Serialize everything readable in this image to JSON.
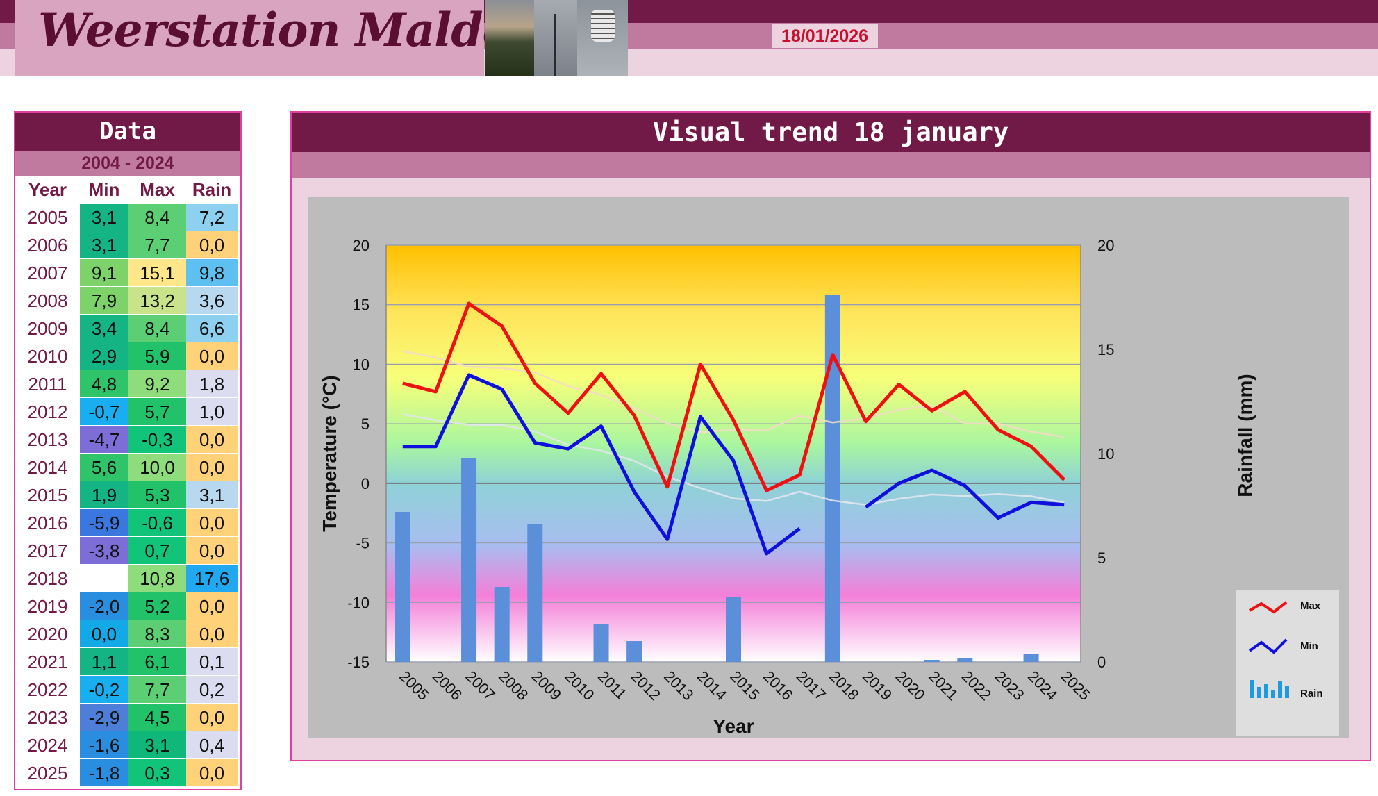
{
  "header": {
    "site_title": "Weerstation Malderen",
    "date": "18/01/2026"
  },
  "table": {
    "title": "Data",
    "period": "2004 - 2024",
    "columns": [
      "Year",
      "Min",
      "Max",
      "Rain"
    ],
    "rows": [
      {
        "year": "2005",
        "min": "3,1",
        "max": "8,4",
        "rain": "7,2"
      },
      {
        "year": "2006",
        "min": "3,1",
        "max": "7,7",
        "rain": "0,0"
      },
      {
        "year": "2007",
        "min": "9,1",
        "max": "15,1",
        "rain": "9,8"
      },
      {
        "year": "2008",
        "min": "7,9",
        "max": "13,2",
        "rain": "3,6"
      },
      {
        "year": "2009",
        "min": "3,4",
        "max": "8,4",
        "rain": "6,6"
      },
      {
        "year": "2010",
        "min": "2,9",
        "max": "5,9",
        "rain": "0,0"
      },
      {
        "year": "2011",
        "min": "4,8",
        "max": "9,2",
        "rain": "1,8"
      },
      {
        "year": "2012",
        "min": "-0,7",
        "max": "5,7",
        "rain": "1,0"
      },
      {
        "year": "2013",
        "min": "-4,7",
        "max": "-0,3",
        "rain": "0,0"
      },
      {
        "year": "2014",
        "min": "5,6",
        "max": "10,0",
        "rain": "0,0"
      },
      {
        "year": "2015",
        "min": "1,9",
        "max": "5,3",
        "rain": "3,1"
      },
      {
        "year": "2016",
        "min": "-5,9",
        "max": "-0,6",
        "rain": "0,0"
      },
      {
        "year": "2017",
        "min": "-3,8",
        "max": "0,7",
        "rain": "0,0"
      },
      {
        "year": "2018",
        "min": "",
        "max": "10,8",
        "rain": "17,6"
      },
      {
        "year": "2019",
        "min": "-2,0",
        "max": "5,2",
        "rain": "0,0"
      },
      {
        "year": "2020",
        "min": "0,0",
        "max": "8,3",
        "rain": "0,0"
      },
      {
        "year": "2021",
        "min": "1,1",
        "max": "6,1",
        "rain": "0,1"
      },
      {
        "year": "2022",
        "min": "-0,2",
        "max": "7,7",
        "rain": "0,2"
      },
      {
        "year": "2023",
        "min": "-2,9",
        "max": "4,5",
        "rain": "0,0"
      },
      {
        "year": "2024",
        "min": "-1,6",
        "max": "3,1",
        "rain": "0,4"
      },
      {
        "year": "2025",
        "min": "-1,8",
        "max": "0,3",
        "rain": "0,0"
      }
    ]
  },
  "chart_panel": {
    "title": "Visual trend 18 january"
  },
  "colors": {
    "max_line": "#ee1111",
    "min_line": "#1010dd",
    "rain_bar": "#5b8fd9",
    "accent": "#721a47"
  },
  "chart_data": {
    "type": "line",
    "xlabel": "Year",
    "ylabel": "Temperature (°C)",
    "y2label": "Rainfall (mm)",
    "ylim": [
      -15,
      20
    ],
    "y2lim": [
      0,
      20
    ],
    "yticks": [
      -15,
      -10,
      -5,
      0,
      5,
      10,
      15,
      20
    ],
    "y2ticks": [
      0,
      5,
      10,
      15,
      20
    ],
    "grid": true,
    "legend_position": "bottom-right",
    "legend": [
      "Max",
      "Min",
      "Rain"
    ],
    "categories": [
      "2005",
      "2006",
      "2007",
      "2008",
      "2009",
      "2010",
      "2011",
      "2012",
      "2013",
      "2014",
      "2015",
      "2016",
      "2017",
      "2018",
      "2019",
      "2020",
      "2021",
      "2022",
      "2023",
      "2024",
      "2025"
    ],
    "series": [
      {
        "name": "Max",
        "type": "line",
        "axis": "left",
        "values": [
          8.4,
          7.7,
          15.1,
          13.2,
          8.4,
          5.9,
          9.2,
          5.7,
          -0.3,
          10.0,
          5.3,
          -0.6,
          0.7,
          10.8,
          5.2,
          8.3,
          6.1,
          7.7,
          4.5,
          3.1,
          0.3
        ]
      },
      {
        "name": "Min",
        "type": "line",
        "axis": "left",
        "values": [
          3.1,
          3.1,
          9.1,
          7.9,
          3.4,
          2.9,
          4.8,
          -0.7,
          -4.7,
          5.6,
          1.9,
          -5.9,
          -3.8,
          null,
          -2.0,
          0.0,
          1.1,
          -0.2,
          -2.9,
          -1.6,
          -1.8
        ]
      },
      {
        "name": "Rain",
        "type": "bar",
        "axis": "right",
        "values": [
          7.2,
          0.0,
          9.8,
          3.6,
          6.6,
          0.0,
          1.8,
          1.0,
          0.0,
          0.0,
          3.1,
          0.0,
          0.0,
          17.6,
          0.0,
          0.0,
          0.1,
          0.2,
          0.0,
          0.4,
          0.0
        ]
      }
    ]
  }
}
